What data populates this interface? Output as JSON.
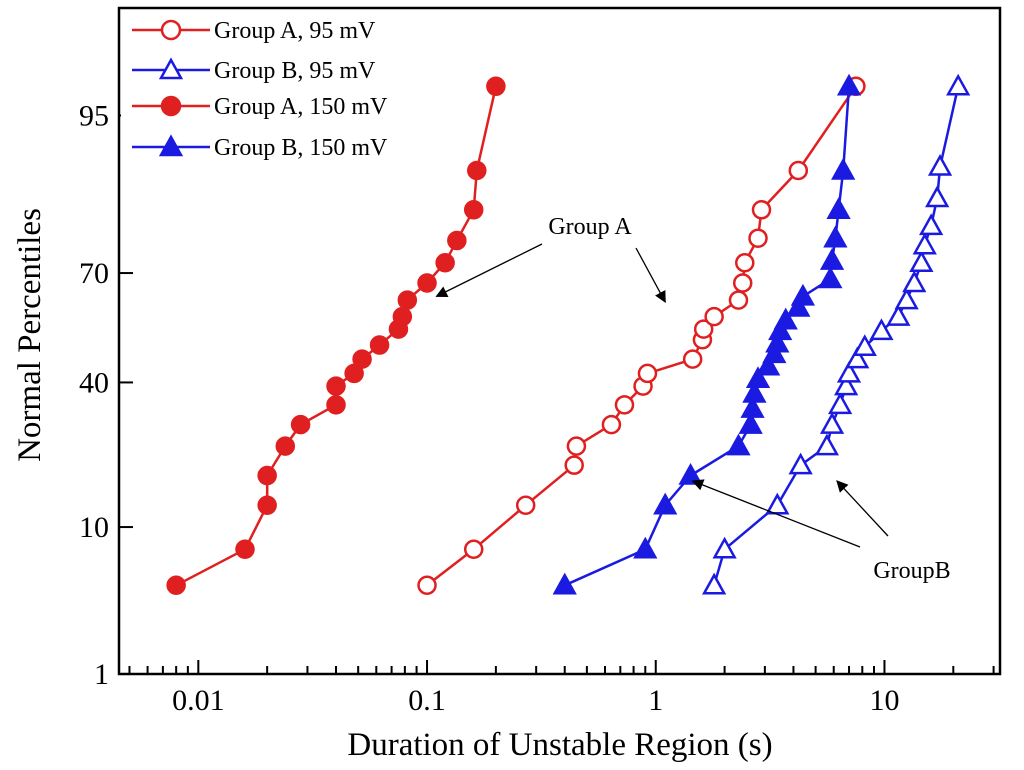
{
  "chart_data": {
    "type": "scatter",
    "xscale": "log",
    "yscale": "normal-probability",
    "xlabel": "Duration of Unstable Region (s)",
    "ylabel": "Normal Percentiles",
    "xlim": [
      0.0045,
      32
    ],
    "ylim": [
      1,
      99.2
    ],
    "x_ticks": [
      {
        "value": 0.01,
        "label": "0.01"
      },
      {
        "value": 0.1,
        "label": "0.1"
      },
      {
        "value": 1,
        "label": "1"
      },
      {
        "value": 10,
        "label": "10"
      }
    ],
    "y_ticks": [
      {
        "value": 1,
        "label": "1"
      },
      {
        "value": 10,
        "label": "10"
      },
      {
        "value": 40,
        "label": "40"
      },
      {
        "value": 70,
        "label": "70"
      },
      {
        "value": 95,
        "label": "95"
      }
    ],
    "series": [
      {
        "name": "Group A, 95 mV",
        "color": "#e02020",
        "marker": "circle",
        "filled": false,
        "x": [
          0.1,
          0.16,
          0.27,
          0.44,
          0.45,
          0.64,
          0.73,
          0.88,
          0.92,
          1.45,
          1.6,
          1.62,
          1.8,
          2.3,
          2.4,
          2.45,
          2.8,
          2.9,
          4.2,
          7.5
        ],
        "y": [
          4.5,
          7.5,
          13,
          20,
          24,
          29,
          34,
          39,
          42.5,
          46.5,
          52,
          55,
          58.5,
          63,
          67.5,
          72.5,
          78,
          83.5,
          89.5,
          96.8
        ]
      },
      {
        "name": "Group B, 95 mV",
        "color": "#1a1ae0",
        "marker": "triangle",
        "filled": false,
        "x": [
          1.8,
          2.0,
          3.4,
          4.3,
          5.6,
          5.9,
          6.4,
          6.8,
          7.0,
          7.6,
          8.2,
          9.7,
          11.5,
          12.5,
          13.5,
          14.5,
          15.0,
          16.0,
          17.0,
          17.5,
          21.0
        ],
        "y": [
          4.5,
          7.5,
          13,
          20,
          24,
          29,
          34,
          39,
          42.5,
          46.5,
          50,
          54.5,
          58.5,
          63,
          67.5,
          72.5,
          76.5,
          80.5,
          85.5,
          90,
          96.8
        ]
      },
      {
        "name": "Group A, 150 mV",
        "color": "#e02020",
        "marker": "circle",
        "filled": true,
        "x": [
          0.008,
          0.016,
          0.02,
          0.02,
          0.024,
          0.028,
          0.04,
          0.04,
          0.048,
          0.052,
          0.062,
          0.075,
          0.078,
          0.082,
          0.1,
          0.12,
          0.135,
          0.16,
          0.165,
          0.2
        ],
        "y": [
          4.5,
          7.5,
          13,
          18,
          24,
          29,
          34,
          39,
          42.5,
          46.5,
          50.5,
          55,
          58.5,
          63,
          67.5,
          72.5,
          77.5,
          83.5,
          89.5,
          96.8
        ]
      },
      {
        "name": "Group B, 150 mV",
        "color": "#1a1ae0",
        "marker": "triangle",
        "filled": true,
        "x": [
          0.4,
          0.9,
          1.1,
          1.42,
          2.3,
          2.6,
          2.65,
          2.7,
          2.8,
          3.1,
          3.3,
          3.4,
          3.5,
          3.7,
          4.2,
          4.4,
          5.8,
          5.9,
          6.1,
          6.3,
          6.6,
          7.0
        ],
        "y": [
          4.5,
          7.5,
          13,
          18,
          24,
          29,
          33,
          37,
          41,
          44.5,
          48,
          51,
          54.5,
          57.5,
          61,
          64,
          68.5,
          73,
          78,
          83.5,
          89.5,
          96.8
        ]
      }
    ],
    "legend": {
      "position": "top-left",
      "entries": [
        "Group A, 95 mV",
        "Group B, 95 mV",
        "Group A, 150 mV",
        "Group B, 150 mV"
      ]
    },
    "annotations": [
      {
        "text": "Group A",
        "arrows_to": [
          {
            "x": 0.11,
            "y": 64
          },
          {
            "x": 1.1,
            "y": 62.5
          }
        ]
      },
      {
        "text": "GroupB",
        "arrows_to": [
          {
            "x": 1.45,
            "y": 17
          },
          {
            "x": 6.2,
            "y": 17
          }
        ]
      }
    ]
  }
}
